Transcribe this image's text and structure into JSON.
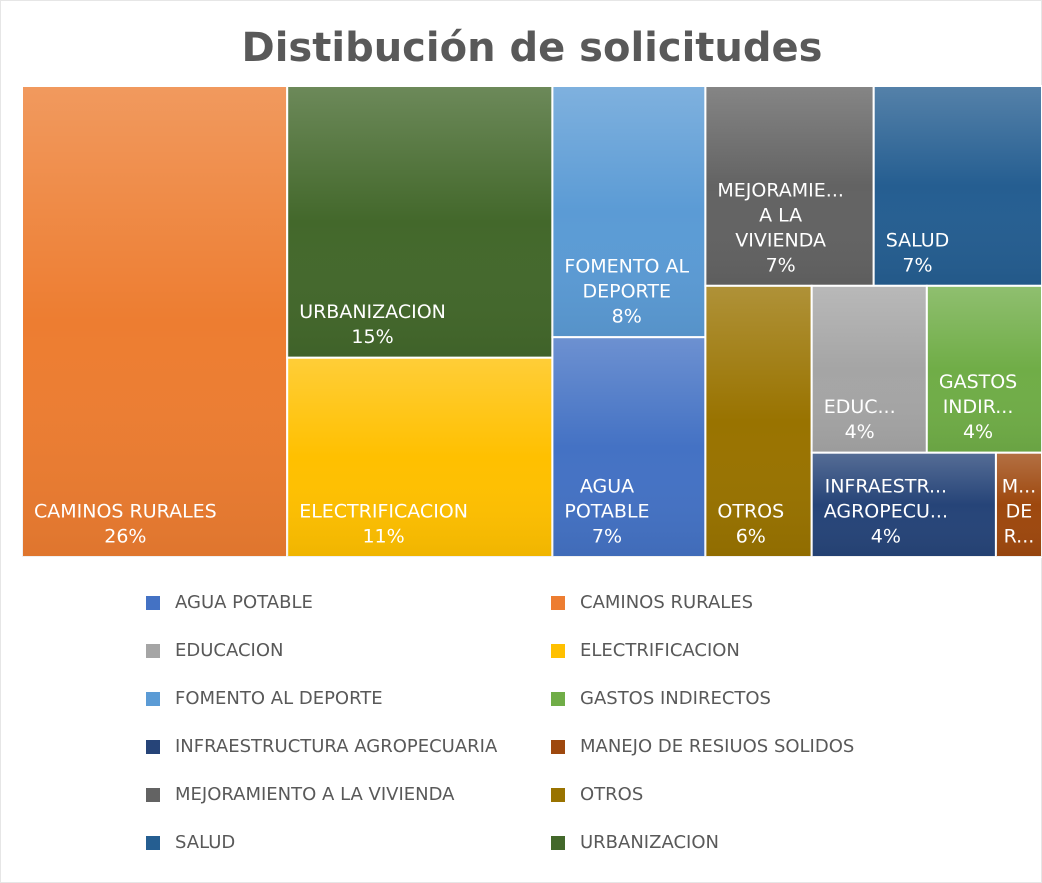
{
  "chart_data": {
    "type": "treemap",
    "title": "Distibución de solicitudes",
    "categories": [
      "AGUA POTABLE",
      "CAMINOS RURALES",
      "EDUCACION",
      "ELECTRIFICACION",
      "FOMENTO AL DEPORTE",
      "GASTOS INDIRECTOS",
      "INFRAESTRUCTURA AGROPECUARIA",
      "MANEJO DE RESIUOS SOLIDOS",
      "MEJORAMIENTO A LA VIVIENDA",
      "OTROS",
      "SALUD",
      "URBANIZACION"
    ],
    "values": [
      7,
      26,
      4,
      11,
      8,
      4,
      4,
      1,
      7,
      6,
      7,
      15
    ],
    "value_labels": [
      "7%",
      "26%",
      "4%",
      "11%",
      "8%",
      "4%",
      "4%",
      null,
      "7%",
      "6%",
      "7%",
      "15%"
    ],
    "tile_labels": [
      [
        "AGUA",
        "POTABLE"
      ],
      [
        "CAMINOS RURALES"
      ],
      [
        "EDUC..."
      ],
      [
        "ELECTRIFICACION"
      ],
      [
        "FOMENTO AL",
        "DEPORTE"
      ],
      [
        "GASTOS",
        "INDIR..."
      ],
      [
        "INFRAESTR...",
        "AGROPECU..."
      ],
      [
        "M...",
        "DE",
        "R..."
      ],
      [
        "MEJORAMIE...",
        "A LA",
        "VIVIENDA"
      ],
      [
        "OTROS"
      ],
      [
        "SALUD"
      ],
      [
        "URBANIZACION"
      ]
    ],
    "colors": [
      "#4472c4",
      "#ed7d31",
      "#a5a5a5",
      "#ffc000",
      "#5b9bd5",
      "#70ad47",
      "#264478",
      "#9e480e",
      "#636363",
      "#997300",
      "#255e91",
      "#43682b"
    ],
    "legend": true
  }
}
